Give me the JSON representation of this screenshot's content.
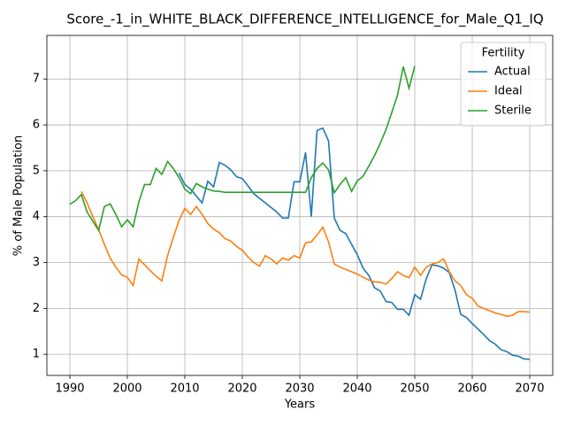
{
  "chart_data": {
    "type": "line",
    "title": "Score_-1_in_WHITE_BLACK_DIFFERENCE_INTELLIGENCE_for_Male_Q1_IQ",
    "x_label": "Years",
    "y_label": "% of Male Population",
    "legend_title": "Fertility",
    "legend": "upper right",
    "grid": true,
    "x": [
      1990,
      1991,
      1992,
      1993,
      1994,
      1995,
      1996,
      1997,
      1998,
      1999,
      2000,
      2001,
      2002,
      2003,
      2004,
      2005,
      2006,
      2007,
      2008,
      2009,
      2010,
      2011,
      2012,
      2013,
      2014,
      2015,
      2016,
      2017,
      2018,
      2019,
      2020,
      2021,
      2022,
      2023,
      2024,
      2025,
      2026,
      2027,
      2028,
      2029,
      2030,
      2031,
      2032,
      2033,
      2034,
      2035,
      2036,
      2037,
      2038,
      2039,
      2040,
      2041,
      2042,
      2043,
      2044,
      2045,
      2046,
      2047,
      2048,
      2049,
      2050,
      2051,
      2052,
      2053,
      2054,
      2055,
      2056,
      2057,
      2058,
      2059,
      2060,
      2061,
      2062,
      2063,
      2064,
      2065,
      2066,
      2067,
      2068,
      2069,
      2070
    ],
    "series": [
      {
        "name": "Actual",
        "color": "#1f77b4",
        "values": [
          null,
          null,
          null,
          null,
          null,
          null,
          null,
          null,
          null,
          null,
          null,
          null,
          null,
          null,
          null,
          null,
          null,
          null,
          null,
          4.95,
          4.7,
          4.6,
          4.45,
          4.3,
          4.77,
          4.65,
          5.18,
          5.12,
          5.02,
          4.87,
          4.83,
          4.67,
          4.5,
          4.4,
          4.3,
          4.2,
          4.1,
          3.97,
          3.97,
          4.76,
          4.76,
          5.4,
          4.0,
          5.88,
          5.93,
          5.65,
          3.97,
          3.7,
          3.63,
          3.4,
          3.17,
          2.88,
          2.72,
          2.45,
          2.38,
          2.15,
          2.13,
          1.98,
          1.98,
          1.85,
          2.3,
          2.2,
          2.65,
          2.95,
          2.93,
          2.88,
          2.78,
          2.4,
          1.87,
          1.8,
          1.67,
          1.55,
          1.43,
          1.3,
          1.22,
          1.1,
          1.06,
          0.98,
          0.96,
          0.9,
          0.89
        ]
      },
      {
        "name": "Ideal",
        "color": "#ff7f0e",
        "values": [
          null,
          null,
          4.55,
          4.3,
          4.0,
          3.72,
          3.4,
          3.1,
          2.9,
          2.73,
          2.68,
          2.5,
          3.08,
          2.95,
          2.82,
          2.7,
          2.6,
          3.15,
          3.55,
          3.92,
          4.18,
          4.05,
          4.22,
          4.05,
          3.85,
          3.73,
          3.65,
          3.52,
          3.47,
          3.35,
          3.27,
          3.12,
          3.0,
          2.92,
          3.15,
          3.08,
          2.97,
          3.1,
          3.05,
          3.15,
          3.1,
          3.43,
          3.45,
          3.6,
          3.77,
          3.45,
          2.97,
          2.9,
          2.85,
          2.8,
          2.75,
          2.68,
          2.62,
          2.58,
          2.57,
          2.53,
          2.65,
          2.8,
          2.72,
          2.67,
          2.9,
          2.72,
          2.9,
          2.97,
          3.0,
          3.08,
          2.8,
          2.6,
          2.5,
          2.3,
          2.22,
          2.05,
          2.0,
          1.95,
          1.9,
          1.87,
          1.83,
          1.85,
          1.93,
          1.93,
          1.92
        ]
      },
      {
        "name": "Sterile",
        "color": "#2ca02c",
        "values": [
          4.27,
          4.35,
          4.48,
          4.1,
          3.9,
          3.7,
          4.22,
          4.28,
          4.05,
          3.78,
          3.93,
          3.78,
          4.32,
          4.7,
          4.7,
          5.05,
          4.92,
          5.2,
          5.05,
          4.85,
          4.6,
          4.5,
          4.72,
          4.65,
          4.6,
          4.56,
          4.55,
          4.53,
          4.53,
          4.53,
          4.53,
          4.53,
          4.53,
          4.53,
          4.53,
          4.53,
          4.53,
          4.53,
          4.53,
          4.53,
          4.53,
          4.53,
          4.85,
          5.05,
          5.17,
          5.02,
          4.52,
          4.7,
          4.85,
          4.55,
          4.78,
          4.88,
          5.1,
          5.33,
          5.6,
          5.9,
          6.27,
          6.65,
          7.27,
          6.8,
          7.28,
          null,
          null,
          null,
          null,
          null,
          null,
          null,
          null,
          null,
          null,
          null,
          null,
          null,
          null,
          null,
          null,
          null,
          null,
          null,
          null
        ]
      }
    ],
    "xlim": [
      1986,
      2074
    ],
    "xticks": [
      1990,
      2000,
      2010,
      2020,
      2030,
      2040,
      2050,
      2060,
      2070
    ],
    "ylim": [
      0.54,
      7.95
    ],
    "yticks": [
      1,
      2,
      3,
      4,
      5,
      6,
      7
    ]
  }
}
